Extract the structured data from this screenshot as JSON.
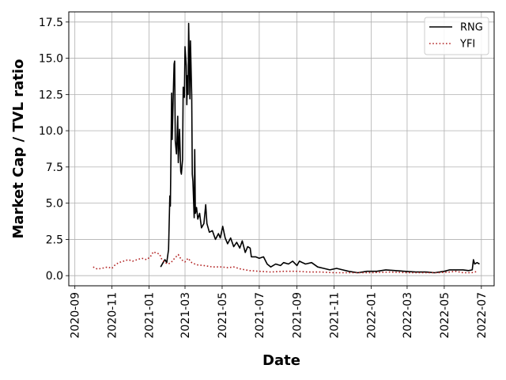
{
  "chart_data": {
    "type": "line",
    "title": "",
    "xlabel": "Date",
    "ylabel": "Market Cap / TVL ratio",
    "xlim": [
      "2020-08-22",
      "2022-07-22"
    ],
    "ylim": [
      -0.7,
      18.2
    ],
    "xticks": [
      "2020-09",
      "2020-11",
      "2021-01",
      "2021-03",
      "2021-05",
      "2021-07",
      "2021-09",
      "2021-11",
      "2022-01",
      "2022-03",
      "2022-05",
      "2022-07"
    ],
    "yticks": [
      "0.0",
      "2.5",
      "5.0",
      "7.5",
      "10.0",
      "12.5",
      "15.0",
      "17.5"
    ],
    "grid": true,
    "legend_position": "top-right",
    "series": [
      {
        "name": "RNG",
        "color": "#000000",
        "style": "solid",
        "points": [
          [
            "2021-01-20",
            0.6
          ],
          [
            "2021-01-24",
            0.9
          ],
          [
            "2021-01-27",
            1.1
          ],
          [
            "2021-01-30",
            0.9
          ],
          [
            "2021-02-02",
            1.8
          ],
          [
            "2021-02-04",
            5.5
          ],
          [
            "2021-02-05",
            4.8
          ],
          [
            "2021-02-07",
            12.6
          ],
          [
            "2021-02-08",
            9.4
          ],
          [
            "2021-02-10",
            13.0
          ],
          [
            "2021-02-11",
            14.6
          ],
          [
            "2021-02-12",
            14.8
          ],
          [
            "2021-02-13",
            9.3
          ],
          [
            "2021-02-15",
            8.4
          ],
          [
            "2021-02-17",
            11.0
          ],
          [
            "2021-02-18",
            7.8
          ],
          [
            "2021-02-20",
            10.1
          ],
          [
            "2021-02-22",
            7.2
          ],
          [
            "2021-02-23",
            7.0
          ],
          [
            "2021-02-25",
            8.0
          ],
          [
            "2021-02-26",
            13.0
          ],
          [
            "2021-02-28",
            12.3
          ],
          [
            "2021-03-01",
            15.8
          ],
          [
            "2021-03-03",
            14.5
          ],
          [
            "2021-03-04",
            11.8
          ],
          [
            "2021-03-05",
            13.8
          ],
          [
            "2021-03-06",
            12.5
          ],
          [
            "2021-03-07",
            17.4
          ],
          [
            "2021-03-08",
            15.0
          ],
          [
            "2021-03-09",
            12.2
          ],
          [
            "2021-03-10",
            16.2
          ],
          [
            "2021-03-12",
            12.4
          ],
          [
            "2021-03-13",
            7.0
          ],
          [
            "2021-03-14",
            6.5
          ],
          [
            "2021-03-16",
            4.0
          ],
          [
            "2021-03-17",
            8.7
          ],
          [
            "2021-03-18",
            4.3
          ],
          [
            "2021-03-20",
            4.7
          ],
          [
            "2021-03-22",
            3.9
          ],
          [
            "2021-03-25",
            4.3
          ],
          [
            "2021-03-28",
            3.3
          ],
          [
            "2021-04-01",
            3.6
          ],
          [
            "2021-04-04",
            4.9
          ],
          [
            "2021-04-06",
            3.6
          ],
          [
            "2021-04-10",
            3.0
          ],
          [
            "2021-04-15",
            3.1
          ],
          [
            "2021-04-20",
            2.5
          ],
          [
            "2021-04-25",
            2.9
          ],
          [
            "2021-04-28",
            2.6
          ],
          [
            "2021-05-02",
            3.4
          ],
          [
            "2021-05-06",
            2.6
          ],
          [
            "2021-05-10",
            2.2
          ],
          [
            "2021-05-15",
            2.6
          ],
          [
            "2021-05-20",
            2.0
          ],
          [
            "2021-05-25",
            2.3
          ],
          [
            "2021-05-30",
            1.9
          ],
          [
            "2021-06-03",
            2.4
          ],
          [
            "2021-06-08",
            1.6
          ],
          [
            "2021-06-12",
            2.0
          ],
          [
            "2021-06-16",
            1.9
          ],
          [
            "2021-06-18",
            1.3
          ],
          [
            "2021-06-25",
            1.3
          ],
          [
            "2021-07-01",
            1.2
          ],
          [
            "2021-07-08",
            1.3
          ],
          [
            "2021-07-14",
            0.8
          ],
          [
            "2021-07-20",
            0.6
          ],
          [
            "2021-07-28",
            0.8
          ],
          [
            "2021-08-05",
            0.7
          ],
          [
            "2021-08-10",
            0.9
          ],
          [
            "2021-08-18",
            0.8
          ],
          [
            "2021-08-25",
            1.0
          ],
          [
            "2021-09-01",
            0.7
          ],
          [
            "2021-09-05",
            1.0
          ],
          [
            "2021-09-15",
            0.8
          ],
          [
            "2021-09-25",
            0.9
          ],
          [
            "2021-10-05",
            0.6
          ],
          [
            "2021-10-15",
            0.5
          ],
          [
            "2021-10-25",
            0.4
          ],
          [
            "2021-11-05",
            0.5
          ],
          [
            "2021-11-15",
            0.4
          ],
          [
            "2021-11-25",
            0.3
          ],
          [
            "2021-12-10",
            0.2
          ],
          [
            "2021-12-25",
            0.3
          ],
          [
            "2022-01-10",
            0.3
          ],
          [
            "2022-01-25",
            0.4
          ],
          [
            "2022-02-10",
            0.35
          ],
          [
            "2022-02-25",
            0.3
          ],
          [
            "2022-03-15",
            0.25
          ],
          [
            "2022-04-01",
            0.25
          ],
          [
            "2022-04-15",
            0.2
          ],
          [
            "2022-05-01",
            0.3
          ],
          [
            "2022-05-10",
            0.4
          ],
          [
            "2022-05-20",
            0.4
          ],
          [
            "2022-06-01",
            0.4
          ],
          [
            "2022-06-10",
            0.35
          ],
          [
            "2022-06-16",
            0.4
          ],
          [
            "2022-06-18",
            1.1
          ],
          [
            "2022-06-20",
            0.8
          ],
          [
            "2022-06-24",
            0.9
          ],
          [
            "2022-06-28",
            0.8
          ]
        ]
      },
      {
        "name": "YFI",
        "color": "#b22222",
        "style": "dotted",
        "points": [
          [
            "2020-10-01",
            0.6
          ],
          [
            "2020-10-08",
            0.45
          ],
          [
            "2020-10-15",
            0.5
          ],
          [
            "2020-10-25",
            0.6
          ],
          [
            "2020-11-01",
            0.5
          ],
          [
            "2020-11-05",
            0.7
          ],
          [
            "2020-11-12",
            0.9
          ],
          [
            "2020-11-20",
            1.0
          ],
          [
            "2020-11-28",
            1.1
          ],
          [
            "2020-12-05",
            1.0
          ],
          [
            "2020-12-12",
            1.1
          ],
          [
            "2020-12-20",
            1.2
          ],
          [
            "2020-12-28",
            1.1
          ],
          [
            "2021-01-03",
            1.3
          ],
          [
            "2021-01-08",
            1.65
          ],
          [
            "2021-01-13",
            1.55
          ],
          [
            "2021-01-18",
            1.5
          ],
          [
            "2021-01-22",
            1.1
          ],
          [
            "2021-01-27",
            0.9
          ],
          [
            "2021-02-01",
            0.8
          ],
          [
            "2021-02-06",
            0.9
          ],
          [
            "2021-02-12",
            1.2
          ],
          [
            "2021-02-18",
            1.45
          ],
          [
            "2021-02-23",
            1.1
          ],
          [
            "2021-03-01",
            0.95
          ],
          [
            "2021-03-06",
            1.2
          ],
          [
            "2021-03-12",
            0.9
          ],
          [
            "2021-03-20",
            0.75
          ],
          [
            "2021-04-01",
            0.7
          ],
          [
            "2021-04-15",
            0.6
          ],
          [
            "2021-05-01",
            0.6
          ],
          [
            "2021-05-10",
            0.55
          ],
          [
            "2021-05-20",
            0.6
          ],
          [
            "2021-06-01",
            0.45
          ],
          [
            "2021-06-15",
            0.35
          ],
          [
            "2021-07-01",
            0.3
          ],
          [
            "2021-07-20",
            0.25
          ],
          [
            "2021-08-10",
            0.3
          ],
          [
            "2021-09-01",
            0.3
          ],
          [
            "2021-09-20",
            0.25
          ],
          [
            "2021-10-10",
            0.25
          ],
          [
            "2021-11-01",
            0.2
          ],
          [
            "2021-11-20",
            0.2
          ],
          [
            "2021-12-10",
            0.2
          ],
          [
            "2022-01-01",
            0.2
          ],
          [
            "2022-02-01",
            0.25
          ],
          [
            "2022-03-01",
            0.2
          ],
          [
            "2022-04-01",
            0.2
          ],
          [
            "2022-04-20",
            0.2
          ],
          [
            "2022-05-10",
            0.25
          ],
          [
            "2022-05-20",
            0.3
          ],
          [
            "2022-06-01",
            0.2
          ],
          [
            "2022-06-15",
            0.2
          ],
          [
            "2022-06-25",
            0.3
          ]
        ]
      }
    ]
  }
}
